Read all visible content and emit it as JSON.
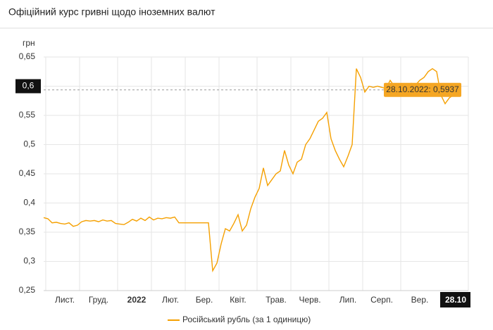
{
  "chart_data": {
    "type": "line",
    "title": "Офіційний курс гривні щодо іноземних валют",
    "y_label": "грн",
    "categories": [
      null,
      null,
      null,
      null,
      null,
      "Лист.",
      null,
      null,
      null,
      null,
      null,
      null,
      null,
      "Груд.",
      null,
      null,
      null,
      null,
      null,
      null,
      null,
      null,
      "2022",
      null,
      null,
      null,
      null,
      null,
      null,
      null,
      "Лют.",
      null,
      null,
      null,
      null,
      null,
      null,
      null,
      "Бер.",
      null,
      null,
      null,
      null,
      null,
      null,
      null,
      "Квіт.",
      null,
      null,
      null,
      null,
      null,
      null,
      null,
      null,
      "Трав.",
      null,
      null,
      null,
      null,
      null,
      null,
      null,
      "Черв.",
      null,
      null,
      null,
      null,
      null,
      null,
      null,
      null,
      "Лип.",
      null,
      null,
      null,
      null,
      null,
      null,
      null,
      "Серп.",
      null,
      null,
      null,
      null,
      null,
      null,
      null,
      null,
      "Вер.",
      null,
      null,
      null,
      null,
      null,
      null,
      null,
      null,
      "28.10"
    ],
    "series": [
      {
        "name": "Російський рубль (за 1 одиницю)",
        "color": "#f5a000",
        "values": [
          0.375,
          0.373,
          0.366,
          0.367,
          0.365,
          0.364,
          0.366,
          0.36,
          0.362,
          0.368,
          0.37,
          0.369,
          0.37,
          0.368,
          0.371,
          0.369,
          0.37,
          0.365,
          0.364,
          0.363,
          0.367,
          0.372,
          0.369,
          0.374,
          0.37,
          0.376,
          0.371,
          0.374,
          0.373,
          0.375,
          0.374,
          0.376,
          0.366,
          0.366,
          0.366,
          0.366,
          0.366,
          0.366,
          0.366,
          0.366,
          0.284,
          0.297,
          0.33,
          0.356,
          0.352,
          0.365,
          0.38,
          0.352,
          0.362,
          0.39,
          0.41,
          0.425,
          0.46,
          0.43,
          0.44,
          0.45,
          0.455,
          0.49,
          0.465,
          0.45,
          0.47,
          0.475,
          0.5,
          0.51,
          0.525,
          0.54,
          0.545,
          0.555,
          0.51,
          0.49,
          0.475,
          0.462,
          0.48,
          0.5,
          0.63,
          0.615,
          0.59,
          0.6,
          0.598,
          0.6,
          0.598,
          0.596,
          0.61,
          0.6,
          0.602,
          0.6,
          0.6,
          0.605,
          0.602,
          0.61,
          0.615,
          0.625,
          0.63,
          0.625,
          0.585,
          0.57,
          0.58,
          0.585,
          0.5937
        ]
      }
    ],
    "ylim": [
      0.25,
      0.65
    ],
    "yticks": [
      {
        "value": 0.25,
        "label": "0,25"
      },
      {
        "value": 0.3,
        "label": "0,3"
      },
      {
        "value": 0.35,
        "label": "0,35"
      },
      {
        "value": 0.4,
        "label": "0,4"
      },
      {
        "value": 0.45,
        "label": "0,45"
      },
      {
        "value": 0.5,
        "label": "0,5"
      },
      {
        "value": 0.55,
        "label": "0,55"
      },
      {
        "value": 0.6,
        "label": "0,6"
      },
      {
        "value": 0.65,
        "label": "0,65"
      }
    ],
    "tooltip": "28.10.2022: 0,5937",
    "grid": true
  }
}
